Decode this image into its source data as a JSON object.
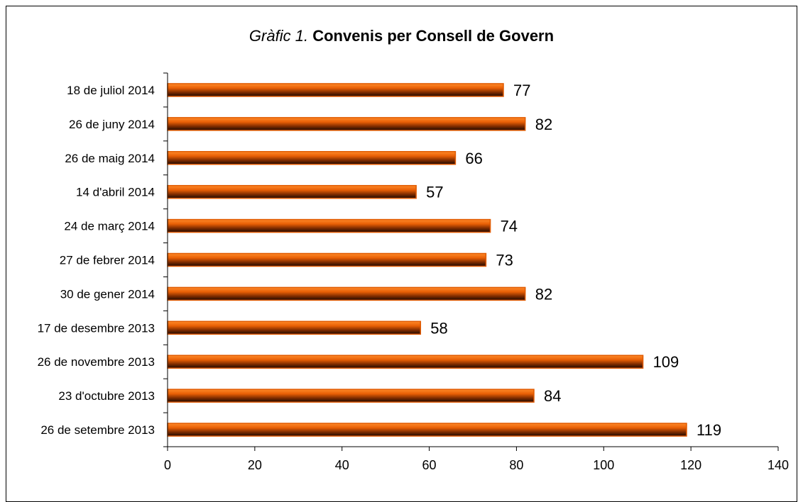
{
  "title": {
    "prefix": "Gràfic 1.",
    "main": "Convenis per Consell de Govern"
  },
  "colors": {
    "bar_light": "#ff7a1a",
    "bar_mid": "#e05a00",
    "bar_dark": "#2a0f00",
    "axis": "#000000"
  },
  "chart_data": {
    "type": "bar",
    "orientation": "horizontal",
    "title": "Gràfic 1. Convenis per Consell de Govern",
    "categories": [
      "18 de juliol 2014",
      "26 de juny 2014",
      "26 de maig 2014",
      "14 d'abril 2014",
      "24 de març 2014",
      "27 de febrer 2014",
      "30 de gener 2014",
      "17 de desembre 2013",
      "26 de novembre 2013",
      "23 d'octubre 2013",
      "26 de setembre 2013"
    ],
    "values": [
      77,
      82,
      66,
      57,
      74,
      73,
      82,
      58,
      109,
      84,
      119
    ],
    "xlim": [
      0,
      140
    ],
    "xticks": [
      0,
      20,
      40,
      60,
      80,
      100,
      120,
      140
    ],
    "xlabel": "",
    "ylabel": "",
    "grid": false,
    "data_labels": true
  }
}
